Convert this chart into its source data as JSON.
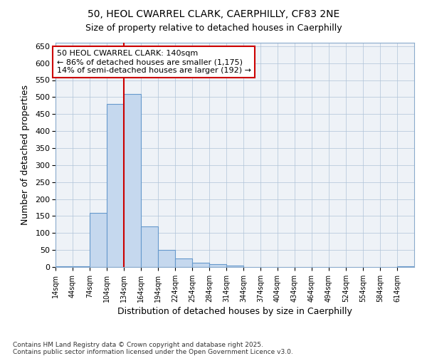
{
  "title1": "50, HEOL CWARREL CLARK, CAERPHILLY, CF83 2NE",
  "title2": "Size of property relative to detached houses in Caerphilly",
  "xlabel": "Distribution of detached houses by size in Caerphilly",
  "ylabel": "Number of detached properties",
  "bar_edge_color": "#6699cc",
  "bar_face_color": "#c5d8ee",
  "vline_x_bin_index": 4,
  "vline_color": "#cc0000",
  "annotation_text": "50 HEOL CWARREL CLARK: 140sqm\n← 86% of detached houses are smaller (1,175)\n14% of semi-detached houses are larger (192) →",
  "annotation_box_color": "#cc0000",
  "footnote": "Contains HM Land Registry data © Crown copyright and database right 2025.\nContains public sector information licensed under the Open Government Licence v3.0.",
  "bin_starts": [
    14,
    44,
    74,
    104,
    134,
    164,
    194,
    224,
    254,
    284,
    314,
    344,
    374,
    404,
    434,
    464,
    494,
    524,
    554,
    584,
    614
  ],
  "bin_width": 30,
  "bar_heights": [
    2,
    2,
    160,
    480,
    510,
    120,
    50,
    25,
    12,
    8,
    5,
    0,
    0,
    0,
    0,
    0,
    0,
    0,
    0,
    0,
    2
  ],
  "ylim": [
    0,
    660
  ],
  "yticks": [
    0,
    50,
    100,
    150,
    200,
    250,
    300,
    350,
    400,
    450,
    500,
    550,
    600,
    650
  ],
  "background_color": "#eef2f7",
  "grid_color": "#b0c4d8",
  "fig_background": "#ffffff"
}
